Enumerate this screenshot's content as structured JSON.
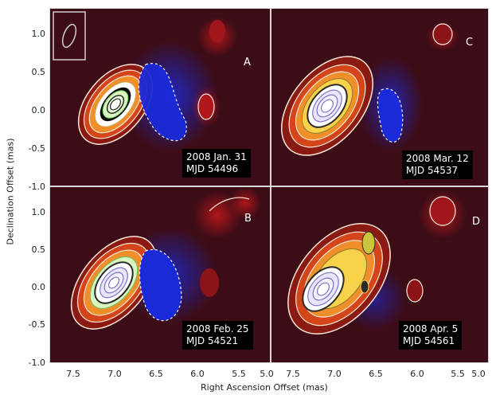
{
  "figure": {
    "xlabel": "Right Ascension Offset (mas)",
    "ylabel": "Declination Offset (mas)",
    "yticks": [
      "1.0",
      "0.5",
      "0.0",
      "-0.5",
      "-1.0"
    ],
    "yticks_bottom": [
      "1.0",
      "0.5",
      "0.0",
      "-0.5",
      "-1.0"
    ],
    "xticks_left": [
      "7.5",
      "7.0",
      "6.5",
      "6.0",
      "5.5",
      "5.0"
    ],
    "xticks_right": [
      "7.5",
      "7.0",
      "6.5",
      "6.0",
      "5.5",
      "5.0"
    ],
    "colors": {
      "background": "#4a0f12",
      "negative": "#1b2ad8",
      "positive_contour": "#ffe6d6",
      "inner_contour": "#b9b4e8",
      "core_fill": "#d8f5c0",
      "beam_box": "#cfcfcf"
    }
  },
  "panels": [
    {
      "label": "A",
      "date": "2008 Jan. 31",
      "mjd": "MJD 54496"
    },
    {
      "label": "C",
      "date": "2008 Mar. 12",
      "mjd": "MJD 54537"
    },
    {
      "label": "B",
      "date": "2008 Feb. 25",
      "mjd": "MJD 54521"
    },
    {
      "label": "D",
      "date": "2008 Apr. 5",
      "mjd": "MJD 54561"
    }
  ]
}
